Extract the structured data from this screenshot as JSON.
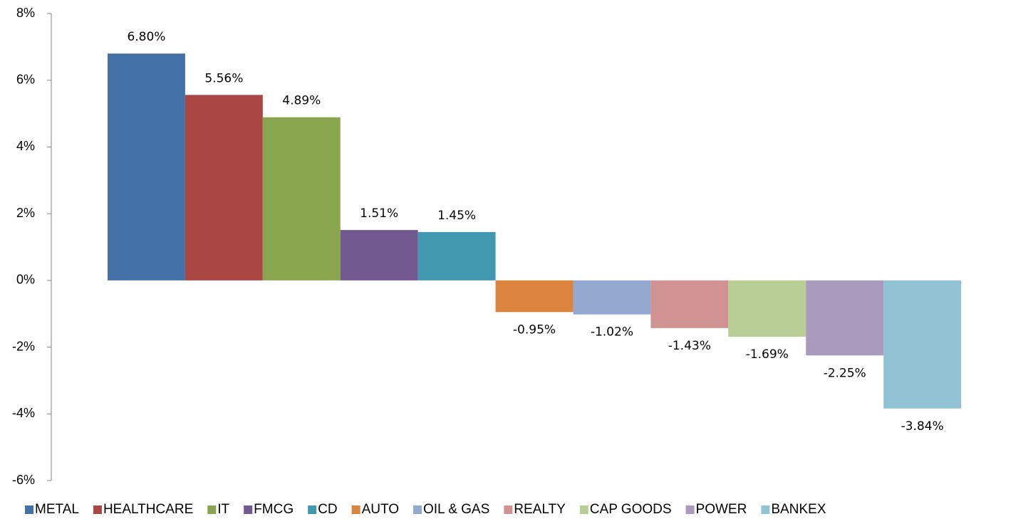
{
  "chart_data": {
    "type": "bar",
    "categories": [
      null
    ],
    "series": [
      {
        "name": "METAL",
        "color": "#4472a8",
        "values": [
          6.8
        ],
        "value_labels": [
          "6.80%"
        ]
      },
      {
        "name": "HEALTHCARE",
        "color": "#aa4644",
        "values": [
          5.56
        ],
        "value_labels": [
          "5.56%"
        ]
      },
      {
        "name": "IT",
        "color": "#89a54e",
        "values": [
          4.89
        ],
        "value_labels": [
          "4.89%"
        ]
      },
      {
        "name": "FMCG",
        "color": "#71588f",
        "values": [
          1.51
        ],
        "value_labels": [
          "1.51%"
        ]
      },
      {
        "name": "CD",
        "color": "#4198af",
        "values": [
          1.45
        ],
        "value_labels": [
          "1.45%"
        ]
      },
      {
        "name": "AUTO",
        "color": "#db843d",
        "values": [
          -0.95
        ],
        "value_labels": [
          "-0.95%"
        ]
      },
      {
        "name": "OIL & GAS",
        "color": "#93a9cf",
        "values": [
          -1.02
        ],
        "value_labels": [
          "-1.02%"
        ]
      },
      {
        "name": "REALTY",
        "color": "#d19392",
        "values": [
          -1.43
        ],
        "value_labels": [
          "-1.43%"
        ]
      },
      {
        "name": "CAP GOODS",
        "color": "#b9cd96",
        "values": [
          -1.69
        ],
        "value_labels": [
          "-1.69%"
        ]
      },
      {
        "name": "POWER",
        "color": "#a99bbd",
        "values": [
          -2.25
        ],
        "value_labels": [
          "-2.25%"
        ]
      },
      {
        "name": "BANKEX",
        "color": "#92c3d4",
        "values": [
          -3.84
        ],
        "value_labels": [
          "-3.84%"
        ]
      }
    ],
    "ylim": [
      -6,
      8
    ],
    "yticks": [
      {
        "value": -6,
        "label": "-6%"
      },
      {
        "value": -4,
        "label": "-4%"
      },
      {
        "value": -2,
        "label": "-2%"
      },
      {
        "value": 0,
        "label": "0%"
      },
      {
        "value": 2,
        "label": "2%"
      },
      {
        "value": 4,
        "label": "4%"
      },
      {
        "value": 6,
        "label": "6%"
      },
      {
        "value": 8,
        "label": "8%"
      }
    ],
    "legend": "bottom"
  }
}
